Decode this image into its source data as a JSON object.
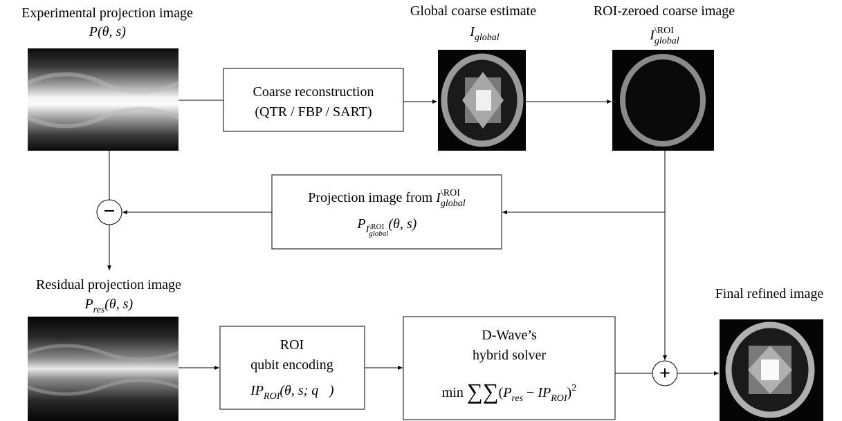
{
  "experimental": {
    "title": "Experimental projection image",
    "math": [
      {
        "italic": "P(θ, s)"
      }
    ]
  },
  "coarse_box": {
    "lines": [
      "Coarse reconstruction",
      "(QTR / FBP / SART)"
    ]
  },
  "global": {
    "title": "Global coarse estimate",
    "math": [
      {
        "italic": "I"
      },
      {
        "sub": "global"
      }
    ]
  },
  "roi_zeroed": {
    "title": "ROI-zeroed coarse image",
    "math": [
      {
        "italic": "I"
      },
      {
        "sub": "global"
      },
      {
        "sup": "\\ROI"
      }
    ]
  },
  "projection_box": {
    "line1": [
      {
        "text": "Projection image from  "
      },
      {
        "italic": "I"
      },
      {
        "sub": "global"
      },
      {
        "sup": "\\ROI"
      }
    ],
    "line2": [
      {
        "italic": "P"
      },
      {
        "sub": "I"
      },
      {
        "subsub": "global"
      },
      {
        "subsup": "\\ROI"
      },
      {
        "italic": "(θ, s)"
      }
    ]
  },
  "residual": {
    "title": "Residual projection image",
    "math": [
      {
        "italic": "P"
      },
      {
        "sub": "res"
      },
      {
        "italic": "(θ, s)"
      }
    ]
  },
  "encoding_box": {
    "lines": [
      "ROI",
      "qubit encoding"
    ],
    "math": [
      {
        "italic": "IP"
      },
      {
        "sub": "ROI"
      },
      {
        "italic": "(θ, s;  q⃗)"
      }
    ]
  },
  "solver_box": {
    "lines": [
      "D-Wave’s",
      "hybrid solver"
    ],
    "math": [
      {
        "text": "min "
      },
      {
        "big": "∑∑"
      },
      {
        "text": "("
      },
      {
        "italic": "P"
      },
      {
        "sub": "res"
      },
      {
        "text": " − "
      },
      {
        "italic": "IP"
      },
      {
        "sub": "ROI"
      },
      {
        "text": ")"
      },
      {
        "sup": "2"
      }
    ]
  },
  "operators": {
    "minus": "−",
    "plus": "+"
  },
  "final": {
    "title": "Final refined image"
  }
}
